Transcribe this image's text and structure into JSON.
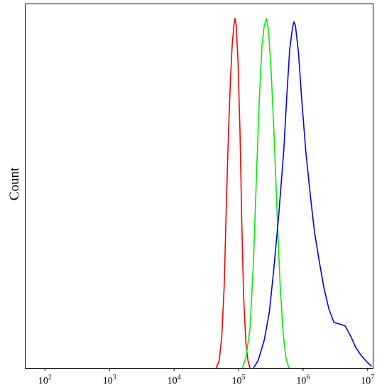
{
  "chart_data": {
    "type": "line",
    "title": "",
    "xlabel": "",
    "ylabel": "Count",
    "x_scale": "log",
    "xlim": [
      50,
      12000000
    ],
    "ylim": [
      0,
      1
    ],
    "grid": false,
    "legend": "none",
    "tick_labels": [
      {
        "value": 100,
        "base": "10",
        "exp": "2"
      },
      {
        "value": 1000,
        "base": "10",
        "exp": "3"
      },
      {
        "value": 10000,
        "base": "10",
        "exp": "4"
      },
      {
        "value": 100000,
        "base": "10",
        "exp": "5"
      },
      {
        "value": 1000000,
        "base": "10",
        "exp": "6"
      },
      {
        "value": 10000000,
        "base": "10",
        "exp": "7"
      }
    ],
    "series": [
      {
        "color": "#ff0000",
        "points": [
          [
            45000,
            0
          ],
          [
            50000,
            0.02
          ],
          [
            55000,
            0.09
          ],
          [
            60000,
            0.24
          ],
          [
            65000,
            0.48
          ],
          [
            70000,
            0.68
          ],
          [
            75000,
            0.83
          ],
          [
            80000,
            0.93
          ],
          [
            85000,
            0.98
          ],
          [
            88000,
            1.0
          ],
          [
            92000,
            0.98
          ],
          [
            98000,
            0.88
          ],
          [
            105000,
            0.68
          ],
          [
            112000,
            0.42
          ],
          [
            120000,
            0.2
          ],
          [
            130000,
            0.07
          ],
          [
            140000,
            0.02
          ],
          [
            150000,
            0
          ]
        ]
      },
      {
        "color": "#00ee00",
        "points": [
          [
            115000,
            0
          ],
          [
            130000,
            0.03
          ],
          [
            150000,
            0.11
          ],
          [
            170000,
            0.3
          ],
          [
            190000,
            0.56
          ],
          [
            210000,
            0.77
          ],
          [
            230000,
            0.92
          ],
          [
            250000,
            0.98
          ],
          [
            270000,
            1.0
          ],
          [
            290000,
            0.97
          ],
          [
            320000,
            0.85
          ],
          [
            360000,
            0.64
          ],
          [
            400000,
            0.42
          ],
          [
            440000,
            0.24
          ],
          [
            490000,
            0.1
          ],
          [
            540000,
            0.03
          ],
          [
            600000,
            0
          ]
        ]
      },
      {
        "color": "#0000ff",
        "points": [
          [
            170000,
            0
          ],
          [
            200000,
            0.02
          ],
          [
            250000,
            0.08
          ],
          [
            300000,
            0.16
          ],
          [
            350000,
            0.28
          ],
          [
            420000,
            0.44
          ],
          [
            500000,
            0.62
          ],
          [
            560000,
            0.78
          ],
          [
            620000,
            0.91
          ],
          [
            680000,
            0.97
          ],
          [
            720000,
            0.99
          ],
          [
            760000,
            0.98
          ],
          [
            850000,
            0.9
          ],
          [
            950000,
            0.77
          ],
          [
            1100000,
            0.62
          ],
          [
            1300000,
            0.49
          ],
          [
            1500000,
            0.39
          ],
          [
            1800000,
            0.3
          ],
          [
            2100000,
            0.23
          ],
          [
            2500000,
            0.17
          ],
          [
            3000000,
            0.13
          ],
          [
            3800000,
            0.125
          ],
          [
            4500000,
            0.12
          ],
          [
            5500000,
            0.09
          ],
          [
            6500000,
            0.06
          ],
          [
            8000000,
            0.035
          ],
          [
            10000000,
            0.015
          ],
          [
            11500000,
            0.005
          ]
        ]
      }
    ]
  }
}
